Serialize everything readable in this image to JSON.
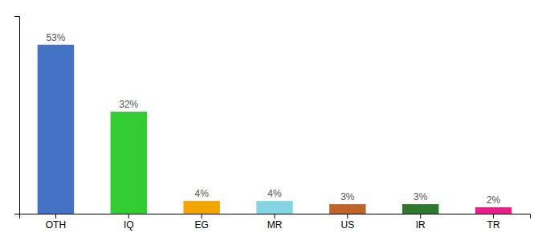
{
  "chart_data": {
    "type": "bar",
    "categories": [
      "OTH",
      "IQ",
      "EG",
      "MR",
      "US",
      "IR",
      "TR"
    ],
    "values": [
      53,
      32,
      4,
      4,
      3,
      3,
      2
    ],
    "value_labels": [
      "53%",
      "32%",
      "4%",
      "4%",
      "3%",
      "3%",
      "2%"
    ],
    "colors": [
      "#4472c4",
      "#33cc33",
      "#f0a500",
      "#85d4e3",
      "#c0632a",
      "#2d7a2d",
      "#e91e8c"
    ],
    "ylim": [
      0,
      62
    ],
    "data_labels": true,
    "tick_labels": "x",
    "grid": false
  }
}
